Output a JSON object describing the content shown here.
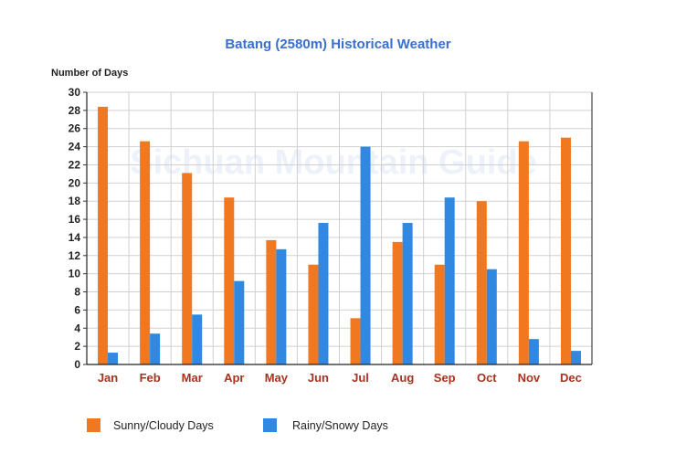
{
  "chart_data": {
    "type": "bar",
    "title": "Batang (2580m) Historical Weather",
    "ylabel": "Number of Days",
    "xlabel": "",
    "watermark": "Sichuan Mountain Guide",
    "categories": [
      "Jan",
      "Feb",
      "Mar",
      "Apr",
      "May",
      "Jun",
      "Jul",
      "Aug",
      "Sep",
      "Oct",
      "Nov",
      "Dec"
    ],
    "ylim": [
      0,
      30
    ],
    "yticks": [
      0,
      2,
      4,
      6,
      8,
      10,
      12,
      14,
      16,
      18,
      20,
      22,
      24,
      26,
      28,
      30
    ],
    "grid": true,
    "legend_position": "bottom-left",
    "series": [
      {
        "name": "Sunny/Cloudy Days",
        "color": "#f07820",
        "values": [
          28.4,
          24.6,
          21.1,
          18.4,
          13.7,
          11.0,
          5.1,
          13.5,
          11.0,
          18.0,
          24.6,
          25.0
        ]
      },
      {
        "name": "Rainy/Snowy Days",
        "color": "#3088e0",
        "values": [
          1.3,
          3.4,
          5.5,
          9.2,
          12.7,
          15.6,
          24.0,
          15.6,
          18.4,
          10.5,
          2.8,
          1.5
        ]
      }
    ]
  }
}
